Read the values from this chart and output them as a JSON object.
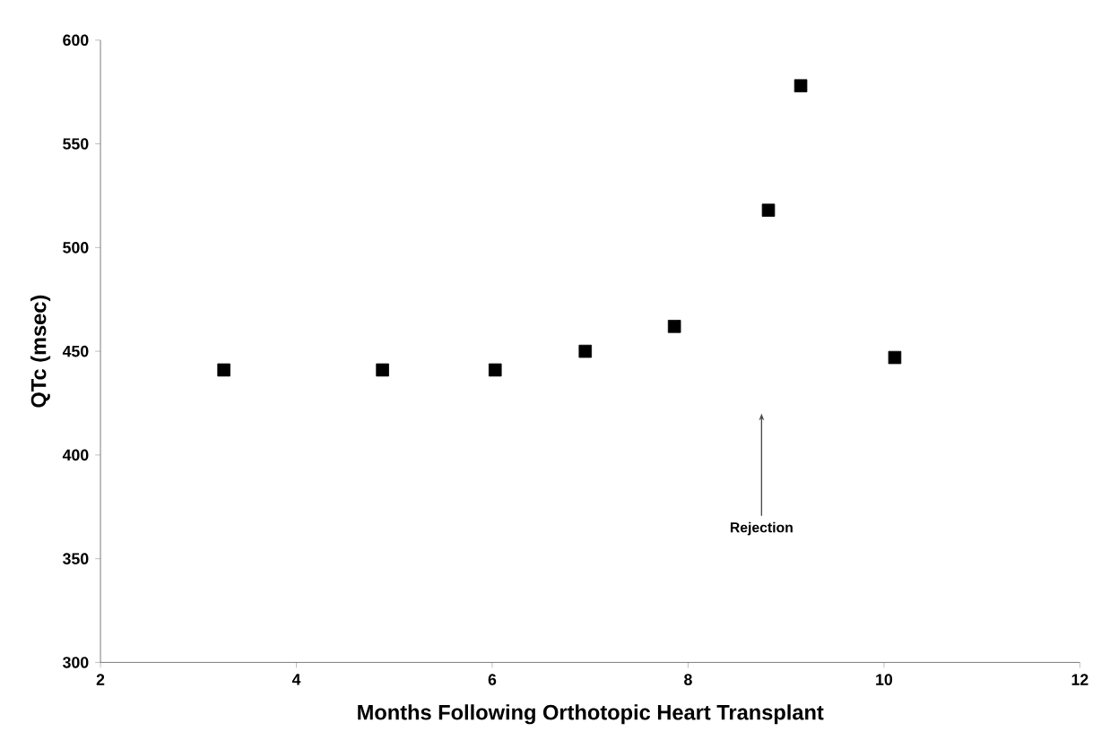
{
  "chart_data": {
    "type": "scatter",
    "xlabel": "Months Following Orthotopic Heart Transplant",
    "ylabel": "QTc (msec)",
    "x": [
      3.26,
      4.88,
      6.03,
      6.95,
      7.86,
      8.82,
      9.15,
      10.11
    ],
    "values": [
      441,
      441,
      441,
      450,
      462,
      518,
      578,
      447
    ],
    "color": "#000000",
    "marker": "square",
    "xlim": [
      2,
      12
    ],
    "xticks": [
      2,
      4,
      6,
      8,
      10,
      12
    ],
    "ylim": [
      300,
      600
    ],
    "yticks": [
      300,
      350,
      400,
      450,
      500,
      550,
      600
    ],
    "grid": false,
    "annotations": [
      {
        "text": "Rejection",
        "x": 8.75,
        "y": 420
      }
    ]
  }
}
